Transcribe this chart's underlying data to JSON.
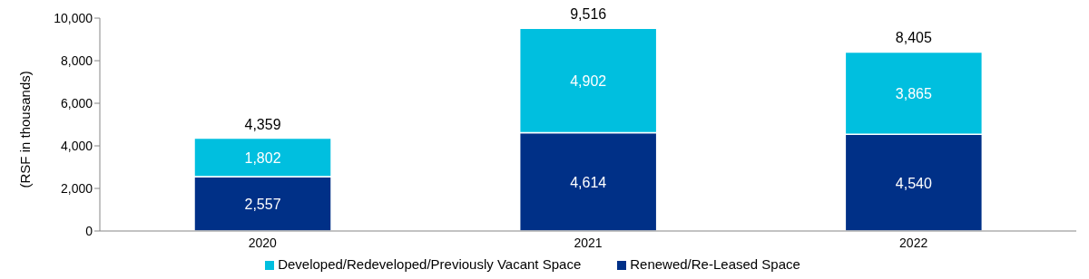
{
  "chart_data": {
    "type": "bar",
    "stacked": true,
    "ylabel": "(RSF in thousands)",
    "categories": [
      "2020",
      "2021",
      "2022"
    ],
    "series": [
      {
        "name": "Renewed/Re-Leased Space",
        "color": "#003087",
        "values": [
          2557,
          4614,
          4540
        ],
        "value_labels": [
          "2,557",
          "4,614",
          "4,540"
        ]
      },
      {
        "name": "Developed/Redeveloped/Previously Vacant Space",
        "color": "#00bfdf",
        "values": [
          1802,
          4902,
          3865
        ],
        "value_labels": [
          "1,802",
          "4,902",
          "3,865"
        ]
      }
    ],
    "totals": [
      "4,359",
      "9,516",
      "8,405"
    ],
    "ylim": [
      0,
      10000
    ],
    "yticks": [
      0,
      {
        "value": 2000,
        "label": "2,000"
      },
      {
        "value": 4000,
        "label": "4,000"
      },
      {
        "value": 6000,
        "label": "6,000"
      },
      {
        "value": 8000,
        "label": "8,000"
      },
      {
        "value": 10000,
        "label": "10,000"
      }
    ],
    "grid": false,
    "legend": "bottom"
  }
}
